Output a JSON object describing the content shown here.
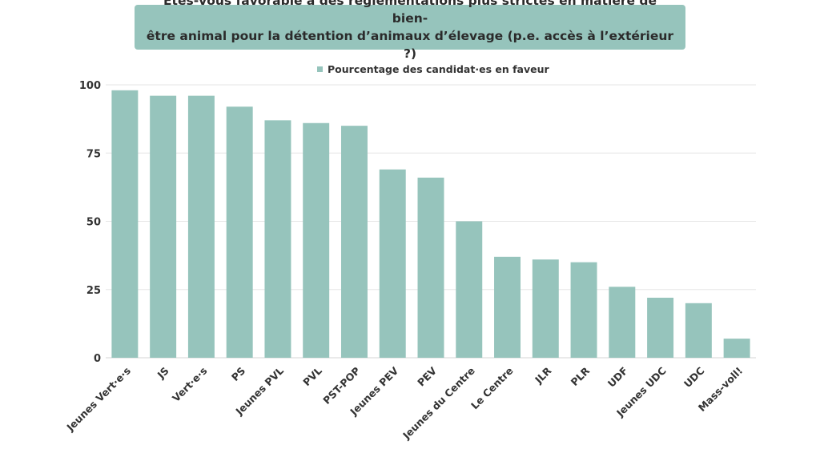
{
  "chart_data": {
    "type": "bar",
    "title": "Êtes-vous favorable à des réglementations plus strictes en matière de bien-\nêtre animal pour la détention d’animaux d’élevage (p.e. accès à l’extérieur ?)",
    "categories": [
      "Jeunes Vert·e·s",
      "JS",
      "Vert·e·s",
      "PS",
      "Jeunes PVL",
      "PVL",
      "PST-POP",
      "Jeunes PEV",
      "PEV",
      "Jeunes du Centre",
      "Le Centre",
      "JLR",
      "PLR",
      "UDF",
      "Jeunes UDC",
      "UDC",
      "Mass-voll!"
    ],
    "series": [
      {
        "name": "Pourcentage des candidat·es en faveur",
        "values": [
          98,
          96,
          96,
          92,
          87,
          86,
          85,
          69,
          66,
          50,
          37,
          36,
          35,
          26,
          22,
          20,
          7
        ]
      }
    ],
    "ylim": [
      0,
      100
    ],
    "yticks": [
      "0",
      "25",
      "50",
      "75",
      "100"
    ],
    "grid": true,
    "legend_position": "top-center",
    "colors": {
      "bar": "#96c4bc",
      "title_box": "#96c4bc",
      "grid": "#e6e6e6"
    }
  }
}
